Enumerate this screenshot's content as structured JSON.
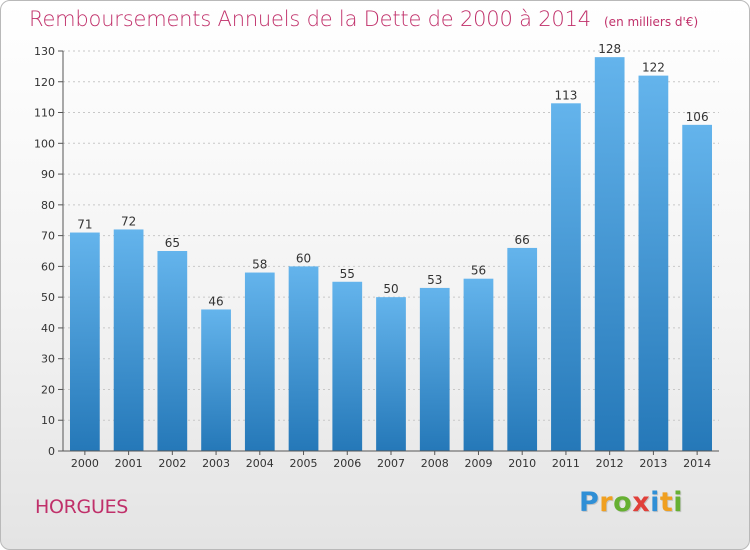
{
  "header": {
    "title": "Remboursements Annuels de la Dette de 2000 à 2014",
    "subtitle": "(en milliers d'€)"
  },
  "commune": "HORGUES",
  "logo": {
    "letters": [
      {
        "char": "P",
        "color": "#2f8fd6"
      },
      {
        "char": "r",
        "color": "#f0a020"
      },
      {
        "char": "o",
        "color": "#66b032"
      },
      {
        "char": "x",
        "color": "#e0403a"
      },
      {
        "char": "i",
        "color": "#2f8fd6"
      },
      {
        "char": "t",
        "color": "#f0a020"
      },
      {
        "char": "i",
        "color": "#66b032"
      }
    ]
  },
  "colors": {
    "bar_top": "#64b4ec",
    "bar_bottom": "#2578b8",
    "grid": "#c8c8c8",
    "axis": "#555555"
  },
  "chart_data": {
    "type": "bar",
    "title": "Remboursements Annuels de la Dette de 2000 à 2014",
    "subtitle": "(en milliers d'€)",
    "categories": [
      "2000",
      "2001",
      "2002",
      "2003",
      "2004",
      "2005",
      "2006",
      "2007",
      "2008",
      "2009",
      "2010",
      "2011",
      "2012",
      "2013",
      "2014"
    ],
    "values": [
      71,
      72,
      65,
      46,
      58,
      60,
      55,
      50,
      53,
      56,
      66,
      113,
      128,
      122,
      106
    ],
    "ylim": [
      0,
      130
    ],
    "yticks": [
      0,
      10,
      20,
      30,
      40,
      50,
      60,
      70,
      80,
      90,
      100,
      110,
      120,
      130
    ],
    "grid": true,
    "data_labels": true
  }
}
